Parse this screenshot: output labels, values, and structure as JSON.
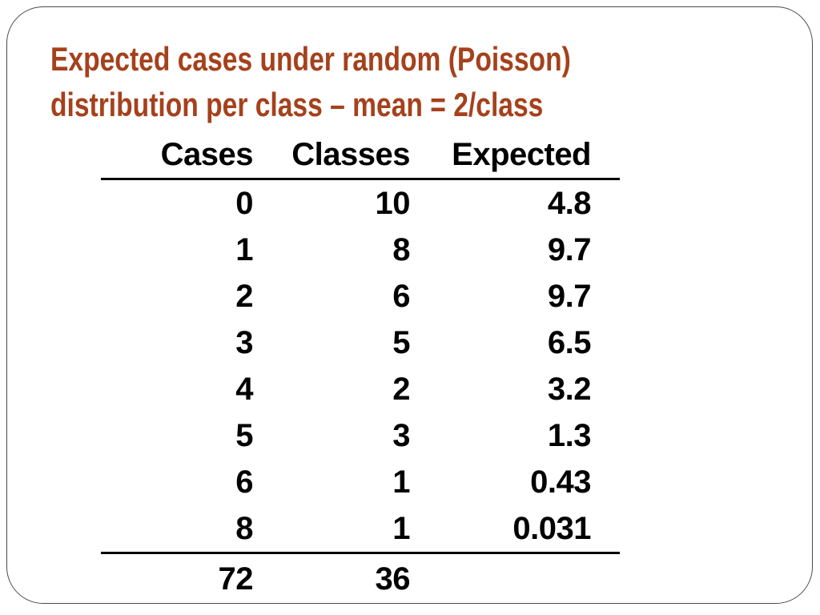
{
  "title": {
    "line1": "Expected cases under random (Poisson)",
    "line2": "distribution per class – mean = 2/class"
  },
  "table": {
    "headers": [
      "Cases",
      "Classes",
      "Expected"
    ],
    "rows": [
      [
        "0",
        "10",
        "4.8"
      ],
      [
        "1",
        "8",
        "9.7"
      ],
      [
        "2",
        "6",
        "9.7"
      ],
      [
        "3",
        "5",
        "6.5"
      ],
      [
        "4",
        "2",
        "3.2"
      ],
      [
        "5",
        "3",
        "1.3"
      ],
      [
        "6",
        "1",
        "0.43"
      ],
      [
        "8",
        "1",
        "0.031"
      ]
    ],
    "totals": [
      "72",
      "36",
      ""
    ]
  },
  "colors": {
    "title_text": "#A5411C",
    "body_text": "#000000",
    "slide_border": "#4A4A4A",
    "table_rule": "#000000",
    "background": "#FFFFFF"
  }
}
